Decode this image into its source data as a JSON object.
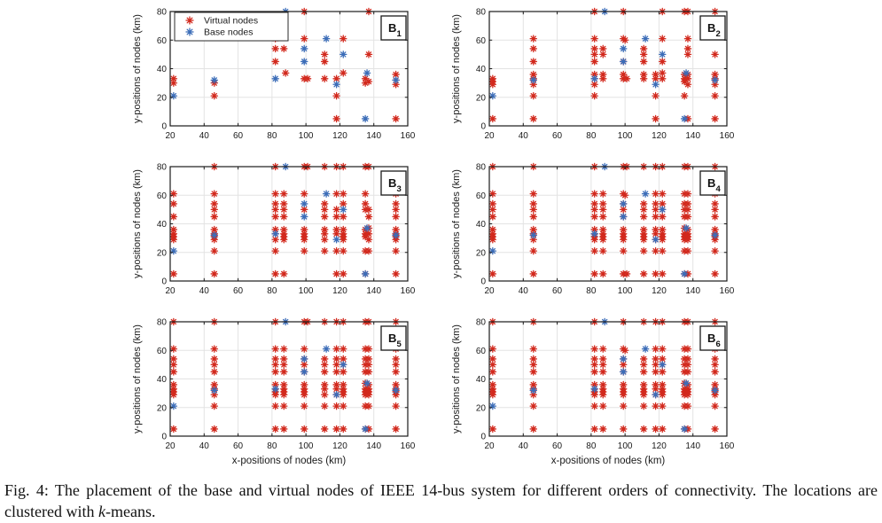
{
  "figure": {
    "caption_prefix": "Fig. 4: The placement of the base and virtual nodes of IEEE 14-bus system for different orders of connectivity. The locations are clustered with ",
    "caption_italic": "k",
    "caption_suffix": "-means."
  },
  "colors": {
    "virtual": "#d2291d",
    "base": "#3c6db8",
    "grid": "#e3e3e3",
    "axis": "#1a1a1a",
    "text": "#1a1a1a"
  },
  "legend": {
    "items": [
      {
        "label": "Virtual nodes",
        "color_key": "virtual"
      },
      {
        "label": "Base nodes",
        "color_key": "base"
      }
    ]
  },
  "axes": {
    "xlabel": "x-positions of nodes (km)",
    "ylabel": "y-positions of nodes (km)",
    "xticks": [
      20,
      40,
      60,
      80,
      100,
      120,
      140,
      160
    ],
    "yticks": [
      0,
      20,
      40,
      60,
      80
    ],
    "xlim": [
      20,
      160
    ],
    "ylim": [
      0,
      80
    ],
    "grid": true
  },
  "chart_data": {
    "type": "scatter",
    "series_names": [
      "Virtual nodes",
      "Base nodes"
    ],
    "base_nodes": [
      [
        22,
        21
      ],
      [
        46,
        32
      ],
      [
        82,
        33
      ],
      [
        88,
        80
      ],
      [
        99,
        54
      ],
      [
        99,
        45
      ],
      [
        112,
        61
      ],
      [
        122,
        50
      ],
      [
        118,
        29
      ],
      [
        136,
        37
      ],
      [
        135,
        5
      ],
      [
        153,
        32
      ]
    ],
    "panels": [
      {
        "label": "B",
        "sub": "1",
        "virtual_nodes": {
          "22": [
            33,
            30
          ],
          "46": [
            30,
            21
          ],
          "82": [
            61,
            54,
            45
          ],
          "87": [
            54
          ],
          "88": [
            37
          ],
          "99": [
            80,
            61,
            33
          ],
          "101": [
            33
          ],
          "111": [
            50,
            45,
            33
          ],
          "118": [
            33,
            21,
            5
          ],
          "122": [
            61,
            37
          ],
          "135": [
            33,
            30
          ],
          "137": [
            80,
            50,
            31
          ],
          "153": [
            36,
            32,
            29,
            5
          ]
        }
      },
      {
        "label": "B",
        "sub": "2",
        "virtual_nodes": {
          "22": [
            33,
            31,
            29,
            5
          ],
          "46": [
            61,
            54,
            45,
            36,
            33,
            29,
            21,
            5
          ],
          "82": [
            80,
            61,
            54,
            50,
            45,
            36,
            33,
            29,
            21
          ],
          "87": [
            54,
            50,
            36,
            33
          ],
          "99": [
            80,
            61,
            45,
            36,
            33
          ],
          "100": [
            60
          ],
          "101": [
            33
          ],
          "111": [
            54,
            50,
            45,
            36,
            33
          ],
          "118": [
            36,
            33,
            21,
            5
          ],
          "122": [
            80,
            61,
            45,
            37,
            33
          ],
          "135": [
            80,
            36,
            33,
            31,
            21
          ],
          "137": [
            80,
            61,
            54,
            50,
            36,
            33,
            29,
            5
          ],
          "153": [
            80,
            50,
            36,
            33,
            29,
            21,
            5
          ]
        }
      },
      {
        "label": "B",
        "sub": "3",
        "virtual_nodes": {
          "22": [
            61,
            54,
            45,
            36,
            33,
            31,
            29,
            5
          ],
          "46": [
            80,
            61,
            54,
            50,
            45,
            36,
            33,
            31,
            29,
            21,
            5
          ],
          "82": [
            80,
            61,
            54,
            50,
            45,
            36,
            33,
            29,
            21,
            5
          ],
          "87": [
            61,
            54,
            50,
            45,
            36,
            33,
            31,
            29,
            5
          ],
          "99": [
            80,
            61,
            50,
            36,
            33,
            31,
            29,
            21
          ],
          "101": [
            80
          ],
          "111": [
            80,
            54,
            50,
            45,
            36,
            33,
            29,
            21
          ],
          "118": [
            80,
            61,
            50,
            45,
            36,
            33,
            21,
            5
          ],
          "122": [
            80,
            61,
            54,
            45,
            36,
            33,
            31,
            29,
            21,
            5
          ],
          "135": [
            80,
            61,
            54,
            50,
            36,
            33,
            31,
            21,
            5
          ],
          "137": [
            80,
            50,
            45,
            37,
            33,
            29,
            21
          ],
          "153": [
            61,
            54,
            50,
            45,
            36,
            33,
            31,
            29,
            21,
            5
          ]
        }
      },
      {
        "label": "B",
        "sub": "4",
        "virtual_nodes": {
          "22": [
            80,
            61,
            54,
            50,
            45,
            36,
            33,
            31,
            29,
            5
          ],
          "46": [
            80,
            61,
            54,
            50,
            45,
            36,
            33,
            29,
            21,
            5
          ],
          "82": [
            80,
            61,
            54,
            50,
            45,
            36,
            33,
            31,
            29,
            21,
            5
          ],
          "87": [
            61,
            54,
            50,
            45,
            36,
            33,
            31,
            29,
            21,
            5
          ],
          "99": [
            80,
            61,
            54,
            50,
            45,
            36,
            33,
            31,
            29,
            21,
            5
          ],
          "100": [
            60
          ],
          "101": [
            80,
            5
          ],
          "111": [
            80,
            54,
            50,
            45,
            36,
            33,
            31,
            29,
            21,
            5
          ],
          "118": [
            80,
            61,
            54,
            50,
            45,
            36,
            33,
            29,
            21,
            5
          ],
          "122": [
            80,
            61,
            54,
            50,
            45,
            36,
            33,
            31,
            29,
            21,
            5
          ],
          "135": [
            80,
            61,
            54,
            50,
            45,
            37,
            33,
            31,
            29,
            21,
            5
          ],
          "137": [
            80,
            61,
            54,
            50,
            45,
            36,
            33,
            31,
            29,
            21,
            5
          ],
          "153": [
            80,
            61,
            54,
            50,
            45,
            36,
            33,
            31,
            29,
            21,
            5
          ]
        }
      },
      {
        "label": "B",
        "sub": "5",
        "virtual_nodes": {
          "22": [
            80,
            61,
            54,
            50,
            45,
            36,
            33,
            31,
            29,
            5
          ],
          "46": [
            80,
            61,
            54,
            50,
            45,
            36,
            33,
            29,
            21,
            5
          ],
          "82": [
            80,
            61,
            54,
            50,
            45,
            36,
            33,
            31,
            29,
            21,
            5
          ],
          "87": [
            61,
            54,
            50,
            45,
            36,
            33,
            31,
            29,
            21,
            5
          ],
          "99": [
            80,
            61,
            54,
            50,
            45,
            36,
            33,
            31,
            29,
            21,
            5
          ],
          "101": [
            80
          ],
          "111": [
            80,
            54,
            50,
            45,
            36,
            33,
            29,
            21,
            5
          ],
          "118": [
            80,
            61,
            54,
            50,
            45,
            36,
            33,
            29,
            21,
            5
          ],
          "122": [
            80,
            61,
            54,
            50,
            45,
            36,
            33,
            31,
            29,
            21,
            5
          ],
          "135": [
            80,
            61,
            54,
            50,
            45,
            37,
            33,
            31,
            29,
            21,
            5
          ],
          "137": [
            80,
            61,
            54,
            50,
            45,
            36,
            33,
            31,
            29,
            21,
            5
          ],
          "153": [
            80,
            61,
            54,
            50,
            45,
            36,
            33,
            31,
            29,
            21,
            5
          ]
        }
      },
      {
        "label": "B",
        "sub": "6",
        "virtual_nodes": {
          "22": [
            80,
            61,
            54,
            50,
            45,
            36,
            33,
            31,
            29,
            5
          ],
          "46": [
            80,
            61,
            54,
            50,
            45,
            36,
            33,
            29,
            21,
            5
          ],
          "82": [
            80,
            61,
            54,
            50,
            45,
            36,
            33,
            31,
            29,
            21,
            5
          ],
          "87": [
            61,
            54,
            50,
            45,
            36,
            33,
            31,
            29,
            21,
            5
          ],
          "99": [
            80,
            61,
            54,
            50,
            45,
            36,
            33,
            31,
            29,
            21,
            5
          ],
          "100": [
            60
          ],
          "111": [
            80,
            54,
            50,
            45,
            36,
            33,
            31,
            29,
            21,
            5
          ],
          "118": [
            80,
            61,
            54,
            50,
            45,
            36,
            33,
            29,
            21,
            5
          ],
          "122": [
            80,
            61,
            54,
            50,
            45,
            36,
            33,
            31,
            29,
            21,
            5
          ],
          "135": [
            80,
            61,
            54,
            50,
            45,
            37,
            33,
            31,
            29,
            21,
            5
          ],
          "137": [
            80,
            61,
            54,
            50,
            45,
            36,
            33,
            31,
            29,
            21,
            5
          ],
          "153": [
            80,
            61,
            54,
            50,
            45,
            36,
            33,
            31,
            29,
            21,
            5
          ]
        }
      }
    ]
  }
}
